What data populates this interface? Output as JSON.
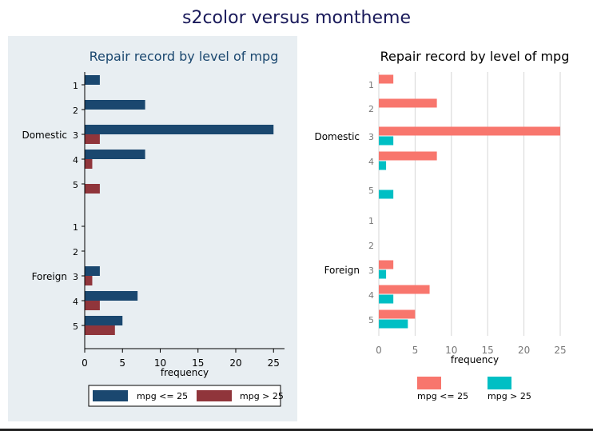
{
  "title": "s2color versus montheme",
  "chart_data": [
    {
      "type": "bar",
      "orientation": "horizontal",
      "theme": "s2color",
      "title": "Repair record by level of mpg",
      "xlabel": "frequency",
      "xlim": [
        0,
        27
      ],
      "xticks": [
        0,
        5,
        10,
        15,
        20,
        25
      ],
      "groups": [
        {
          "name": "Domestic",
          "categories": [
            "1",
            "2",
            "3",
            "4",
            "5"
          ]
        },
        {
          "name": "Foreign",
          "categories": [
            "1",
            "2",
            "3",
            "4",
            "5"
          ]
        }
      ],
      "series": [
        {
          "name": "mpg <= 25",
          "color": "#1a476f",
          "values": [
            2,
            8,
            25,
            8,
            0,
            0,
            0,
            2,
            7,
            5
          ]
        },
        {
          "name": "mpg > 25",
          "color": "#90353b",
          "values": [
            0,
            0,
            2,
            1,
            2,
            0,
            0,
            1,
            2,
            4
          ]
        }
      ],
      "legend": "bottom",
      "background": "#e8eef2",
      "grid": false
    },
    {
      "type": "bar",
      "orientation": "horizontal",
      "theme": "montheme",
      "title": "Repair record by level of mpg",
      "xlabel": "frequency",
      "xlim": [
        0,
        26
      ],
      "xticks": [
        0,
        5,
        10,
        15,
        20,
        25
      ],
      "groups": [
        {
          "name": "Domestic",
          "categories": [
            "1",
            "2",
            "3",
            "4",
            "5"
          ]
        },
        {
          "name": "Foreign",
          "categories": [
            "1",
            "2",
            "3",
            "4",
            "5"
          ]
        }
      ],
      "series": [
        {
          "name": "mpg <= 25",
          "color": "#f8766d",
          "values": [
            2,
            8,
            25,
            8,
            0,
            0,
            0,
            2,
            7,
            5
          ]
        },
        {
          "name": "mpg > 25",
          "color": "#00bfc4",
          "values": [
            0,
            0,
            2,
            1,
            2,
            0,
            0,
            1,
            2,
            4
          ]
        }
      ],
      "legend": "bottom",
      "background": "#ffffff",
      "grid": true
    }
  ]
}
